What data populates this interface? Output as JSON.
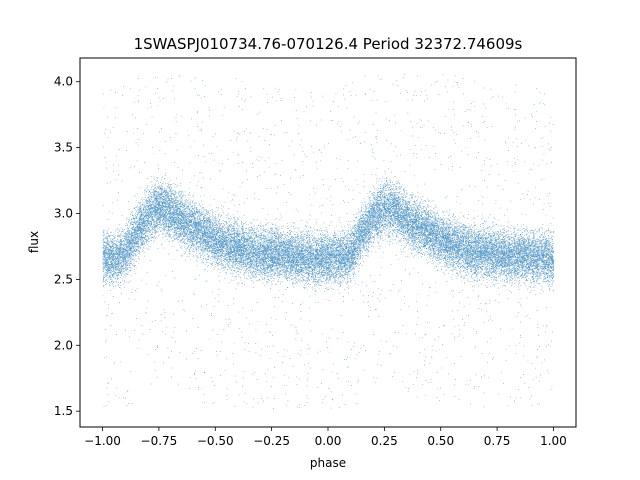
{
  "chart_data": {
    "type": "scatter",
    "title": "1SWASPJ010734.76-070126.4 Period 32372.74609s",
    "xlabel": "phase",
    "ylabel": "flux",
    "xlim": [
      -1.1,
      1.1
    ],
    "ylim": [
      1.38,
      4.18
    ],
    "x_ticks": [
      -1.0,
      -0.75,
      -0.5,
      -0.25,
      0.0,
      0.25,
      0.5,
      0.75,
      1.0
    ],
    "x_tick_labels": [
      "−1.00",
      "−0.75",
      "−0.50",
      "−0.25",
      "0.00",
      "0.25",
      "0.50",
      "0.75",
      "1.00"
    ],
    "y_ticks": [
      1.5,
      2.0,
      2.5,
      3.0,
      3.5,
      4.0
    ],
    "y_tick_labels": [
      "1.5",
      "2.0",
      "2.5",
      "3.0",
      "3.5",
      "4.0"
    ],
    "grid": false,
    "legend": "none",
    "marker_color": "#1f77b4",
    "series": [
      {
        "x": [
          -1.0,
          -0.95,
          -0.9,
          -0.85,
          -0.8,
          -0.75,
          -0.7,
          -0.65,
          -0.6,
          -0.55,
          -0.5,
          -0.45,
          -0.4,
          -0.35,
          -0.3,
          -0.25,
          -0.2,
          -0.15,
          -0.1,
          -0.05,
          0.0,
          0.05,
          0.1,
          0.15,
          0.2,
          0.25,
          0.3,
          0.35,
          0.4,
          0.45,
          0.5,
          0.55,
          0.6,
          0.65,
          0.7,
          0.75,
          0.8,
          0.85,
          0.9,
          0.95,
          1.0
        ],
        "y": [
          2.68,
          2.65,
          2.7,
          2.85,
          2.98,
          3.05,
          3.02,
          2.95,
          2.9,
          2.85,
          2.8,
          2.76,
          2.73,
          2.71,
          2.7,
          2.69,
          2.68,
          2.68,
          2.67,
          2.66,
          2.65,
          2.66,
          2.7,
          2.85,
          2.98,
          3.05,
          3.02,
          2.95,
          2.9,
          2.85,
          2.8,
          2.76,
          2.73,
          2.71,
          2.7,
          2.69,
          2.68,
          2.68,
          2.67,
          2.66,
          2.65
        ],
        "spread": 0.16,
        "point_count": 30000
      }
    ]
  }
}
